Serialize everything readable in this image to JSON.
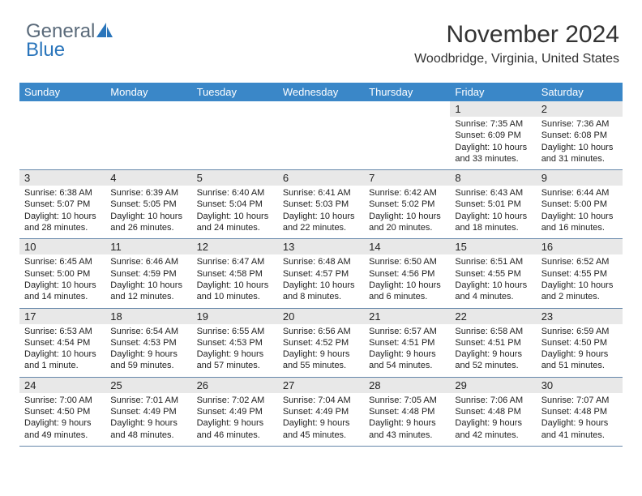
{
  "brand": {
    "word1": "General",
    "word2": "Blue"
  },
  "title": "November 2024",
  "location": "Woodbridge, Virginia, United States",
  "colors": {
    "header_bg": "#3a87c8",
    "header_fg": "#ffffff",
    "daynum_bg": "#e8e8e8",
    "body_bg": "#ffffff",
    "text": "#222222",
    "rule": "#6688aa",
    "brand_grey": "#5a6a7a",
    "brand_blue": "#2a75bb"
  },
  "weekdays": [
    "Sunday",
    "Monday",
    "Tuesday",
    "Wednesday",
    "Thursday",
    "Friday",
    "Saturday"
  ],
  "weeks": [
    [
      null,
      null,
      null,
      null,
      null,
      {
        "n": "1",
        "sr": "Sunrise: 7:35 AM",
        "ss": "Sunset: 6:09 PM",
        "dl": "Daylight: 10 hours and 33 minutes."
      },
      {
        "n": "2",
        "sr": "Sunrise: 7:36 AM",
        "ss": "Sunset: 6:08 PM",
        "dl": "Daylight: 10 hours and 31 minutes."
      }
    ],
    [
      {
        "n": "3",
        "sr": "Sunrise: 6:38 AM",
        "ss": "Sunset: 5:07 PM",
        "dl": "Daylight: 10 hours and 28 minutes."
      },
      {
        "n": "4",
        "sr": "Sunrise: 6:39 AM",
        "ss": "Sunset: 5:05 PM",
        "dl": "Daylight: 10 hours and 26 minutes."
      },
      {
        "n": "5",
        "sr": "Sunrise: 6:40 AM",
        "ss": "Sunset: 5:04 PM",
        "dl": "Daylight: 10 hours and 24 minutes."
      },
      {
        "n": "6",
        "sr": "Sunrise: 6:41 AM",
        "ss": "Sunset: 5:03 PM",
        "dl": "Daylight: 10 hours and 22 minutes."
      },
      {
        "n": "7",
        "sr": "Sunrise: 6:42 AM",
        "ss": "Sunset: 5:02 PM",
        "dl": "Daylight: 10 hours and 20 minutes."
      },
      {
        "n": "8",
        "sr": "Sunrise: 6:43 AM",
        "ss": "Sunset: 5:01 PM",
        "dl": "Daylight: 10 hours and 18 minutes."
      },
      {
        "n": "9",
        "sr": "Sunrise: 6:44 AM",
        "ss": "Sunset: 5:00 PM",
        "dl": "Daylight: 10 hours and 16 minutes."
      }
    ],
    [
      {
        "n": "10",
        "sr": "Sunrise: 6:45 AM",
        "ss": "Sunset: 5:00 PM",
        "dl": "Daylight: 10 hours and 14 minutes."
      },
      {
        "n": "11",
        "sr": "Sunrise: 6:46 AM",
        "ss": "Sunset: 4:59 PM",
        "dl": "Daylight: 10 hours and 12 minutes."
      },
      {
        "n": "12",
        "sr": "Sunrise: 6:47 AM",
        "ss": "Sunset: 4:58 PM",
        "dl": "Daylight: 10 hours and 10 minutes."
      },
      {
        "n": "13",
        "sr": "Sunrise: 6:48 AM",
        "ss": "Sunset: 4:57 PM",
        "dl": "Daylight: 10 hours and 8 minutes."
      },
      {
        "n": "14",
        "sr": "Sunrise: 6:50 AM",
        "ss": "Sunset: 4:56 PM",
        "dl": "Daylight: 10 hours and 6 minutes."
      },
      {
        "n": "15",
        "sr": "Sunrise: 6:51 AM",
        "ss": "Sunset: 4:55 PM",
        "dl": "Daylight: 10 hours and 4 minutes."
      },
      {
        "n": "16",
        "sr": "Sunrise: 6:52 AM",
        "ss": "Sunset: 4:55 PM",
        "dl": "Daylight: 10 hours and 2 minutes."
      }
    ],
    [
      {
        "n": "17",
        "sr": "Sunrise: 6:53 AM",
        "ss": "Sunset: 4:54 PM",
        "dl": "Daylight: 10 hours and 1 minute."
      },
      {
        "n": "18",
        "sr": "Sunrise: 6:54 AM",
        "ss": "Sunset: 4:53 PM",
        "dl": "Daylight: 9 hours and 59 minutes."
      },
      {
        "n": "19",
        "sr": "Sunrise: 6:55 AM",
        "ss": "Sunset: 4:53 PM",
        "dl": "Daylight: 9 hours and 57 minutes."
      },
      {
        "n": "20",
        "sr": "Sunrise: 6:56 AM",
        "ss": "Sunset: 4:52 PM",
        "dl": "Daylight: 9 hours and 55 minutes."
      },
      {
        "n": "21",
        "sr": "Sunrise: 6:57 AM",
        "ss": "Sunset: 4:51 PM",
        "dl": "Daylight: 9 hours and 54 minutes."
      },
      {
        "n": "22",
        "sr": "Sunrise: 6:58 AM",
        "ss": "Sunset: 4:51 PM",
        "dl": "Daylight: 9 hours and 52 minutes."
      },
      {
        "n": "23",
        "sr": "Sunrise: 6:59 AM",
        "ss": "Sunset: 4:50 PM",
        "dl": "Daylight: 9 hours and 51 minutes."
      }
    ],
    [
      {
        "n": "24",
        "sr": "Sunrise: 7:00 AM",
        "ss": "Sunset: 4:50 PM",
        "dl": "Daylight: 9 hours and 49 minutes."
      },
      {
        "n": "25",
        "sr": "Sunrise: 7:01 AM",
        "ss": "Sunset: 4:49 PM",
        "dl": "Daylight: 9 hours and 48 minutes."
      },
      {
        "n": "26",
        "sr": "Sunrise: 7:02 AM",
        "ss": "Sunset: 4:49 PM",
        "dl": "Daylight: 9 hours and 46 minutes."
      },
      {
        "n": "27",
        "sr": "Sunrise: 7:04 AM",
        "ss": "Sunset: 4:49 PM",
        "dl": "Daylight: 9 hours and 45 minutes."
      },
      {
        "n": "28",
        "sr": "Sunrise: 7:05 AM",
        "ss": "Sunset: 4:48 PM",
        "dl": "Daylight: 9 hours and 43 minutes."
      },
      {
        "n": "29",
        "sr": "Sunrise: 7:06 AM",
        "ss": "Sunset: 4:48 PM",
        "dl": "Daylight: 9 hours and 42 minutes."
      },
      {
        "n": "30",
        "sr": "Sunrise: 7:07 AM",
        "ss": "Sunset: 4:48 PM",
        "dl": "Daylight: 9 hours and 41 minutes."
      }
    ]
  ]
}
